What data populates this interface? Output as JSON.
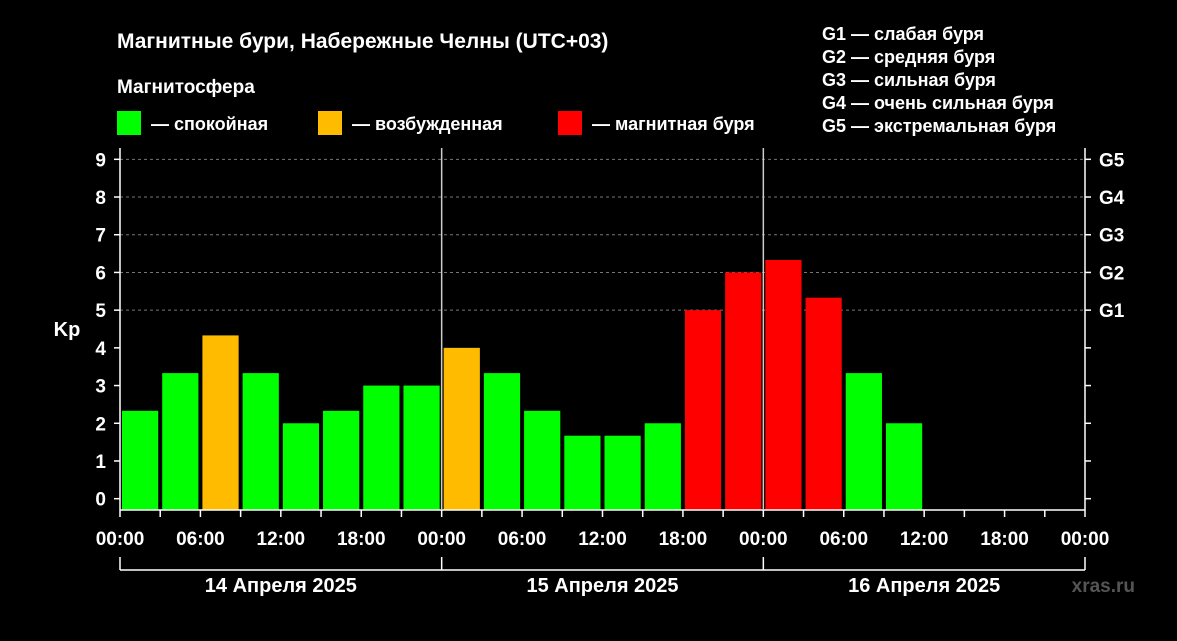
{
  "chart_data": {
    "type": "bar",
    "title": "Магнитные бури, Набережные Челны (UTC+03)",
    "ylabel": "Kp",
    "ylim": [
      -0.3,
      9.3
    ],
    "y_ticks": [
      "0",
      "1",
      "2",
      "3",
      "4",
      "5",
      "6",
      "7",
      "8",
      "9"
    ],
    "grid": "dashed horizontal, above Kp 5",
    "right_axis_labels": [
      {
        "kp": 5,
        "label": "G1"
      },
      {
        "kp": 6,
        "label": "G2"
      },
      {
        "kp": 7,
        "label": "G3"
      },
      {
        "kp": 8,
        "label": "G4"
      },
      {
        "kp": 9,
        "label": "G5"
      }
    ],
    "x_tick_labels": [
      "00:00",
      "06:00",
      "12:00",
      "18:00",
      "00:00",
      "06:00",
      "12:00",
      "18:00",
      "00:00",
      "06:00",
      "12:00",
      "18:00",
      "00:00"
    ],
    "days": [
      "14 Апреля 2025",
      "15 Апреля 2025",
      "16 Апреля 2025"
    ],
    "interval_hours": 3,
    "values": [
      2.33,
      3.33,
      4.33,
      3.33,
      2.0,
      2.33,
      3.0,
      3.0,
      4.0,
      3.33,
      2.33,
      1.67,
      1.67,
      2.0,
      5.0,
      6.0,
      6.33,
      5.33,
      3.33,
      2.0
    ],
    "legend_title": "Магнитосфера",
    "legend": [
      {
        "label": "— спокойная",
        "color": "#00ff00"
      },
      {
        "label": "— возбужденная",
        "color": "#ffbb00"
      },
      {
        "label": "— магнитная буря",
        "color": "#ff0000"
      }
    ],
    "g_scale": [
      "G1 — слабая буря",
      "G2 — средняя буря",
      "G3 — сильная буря",
      "G4 — очень сильная буря",
      "G5 — экстремальная буря"
    ],
    "watermark": "xras.ru"
  }
}
